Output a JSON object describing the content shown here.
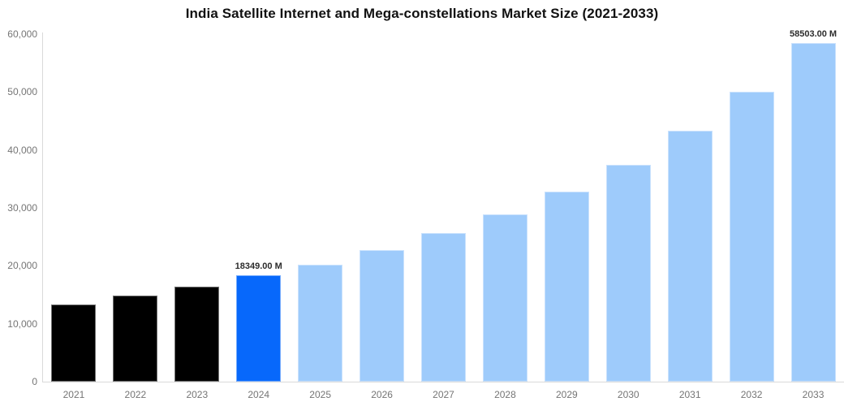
{
  "chart_data": {
    "type": "bar",
    "title": "India Satellite Internet and Mega-constellations Market Size (2021-2033)",
    "categories": [
      "2021",
      "2022",
      "2023",
      "2024",
      "2025",
      "2026",
      "2027",
      "2028",
      "2029",
      "2030",
      "2031",
      "2032",
      "2033"
    ],
    "values": [
      13300,
      14850,
      16450,
      18349,
      20200,
      22700,
      25650,
      28900,
      32850,
      37500,
      43250,
      50000,
      58503
    ],
    "data_labels": [
      "",
      "",
      "",
      "18349.00 M",
      "",
      "",
      "",
      "",
      "",
      "",
      "",
      "",
      "58503.00 M"
    ],
    "bar_colors": [
      "#000000",
      "#000000",
      "#000000",
      "#0768fb",
      "#9ecbfb",
      "#9ecbfb",
      "#9ecbfb",
      "#9ecbfb",
      "#9ecbfb",
      "#9ecbfb",
      "#9ecbfb",
      "#9ecbfb",
      "#9ecbfb"
    ],
    "xlabel": "",
    "ylabel": "",
    "ylim": [
      0,
      60000
    ],
    "ytick_values": [
      0,
      10000,
      20000,
      30000,
      40000,
      50000,
      60000
    ],
    "ytick_labels": [
      "0",
      "10,000",
      "20,000",
      "30,000",
      "40,000",
      "50,000",
      "60,000"
    ],
    "grid": false,
    "legend": false
  },
  "colors": {
    "background": "#ffffff",
    "historical_bar": "#000000",
    "highlight_bar": "#0768fb",
    "forecast_bar": "#9ecbfb",
    "axis_line": "#d9d9d9",
    "tick_label": "#757575",
    "title_text": "#111111",
    "data_label": "#2b2b2b"
  }
}
